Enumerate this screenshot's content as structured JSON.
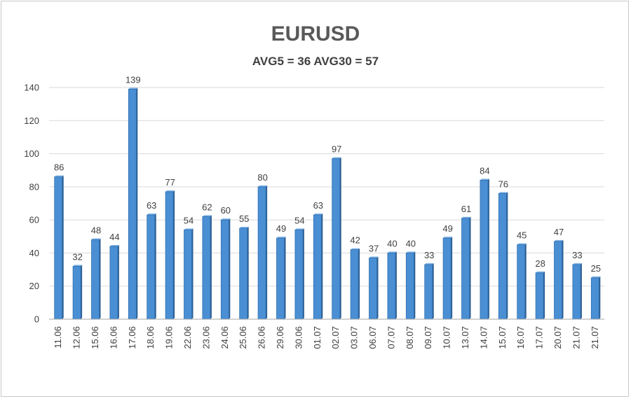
{
  "chart_data": {
    "type": "bar",
    "title": "EURUSD",
    "subtitle": "AVG5 = 36 AVG30 = 57",
    "categories": [
      "11.06",
      "12.06",
      "15.06",
      "16.06",
      "17.06",
      "18.06",
      "19.06",
      "22.06",
      "23.06",
      "24.06",
      "25.06",
      "26.06",
      "29.06",
      "30.06",
      "01.07",
      "02.07",
      "03.07",
      "06.07",
      "07.07",
      "08.07",
      "09.07",
      "10.07",
      "13.07",
      "14.07",
      "15.07",
      "16.07",
      "17.07",
      "20.07",
      "21.07",
      "21.07"
    ],
    "values": [
      86,
      32,
      48,
      44,
      139,
      63,
      77,
      54,
      62,
      60,
      55,
      80,
      49,
      54,
      63,
      97,
      42,
      37,
      40,
      40,
      33,
      49,
      61,
      84,
      76,
      45,
      28,
      47,
      33,
      25
    ],
    "ylim": [
      0,
      140
    ],
    "yticks": [
      0,
      20,
      40,
      60,
      80,
      100,
      120,
      140
    ],
    "grid": true,
    "legend": "none",
    "colors": {
      "bar": "#4a8fd4",
      "bar_edge": "#2f6fae",
      "bar_side": "#2d5f92"
    }
  }
}
